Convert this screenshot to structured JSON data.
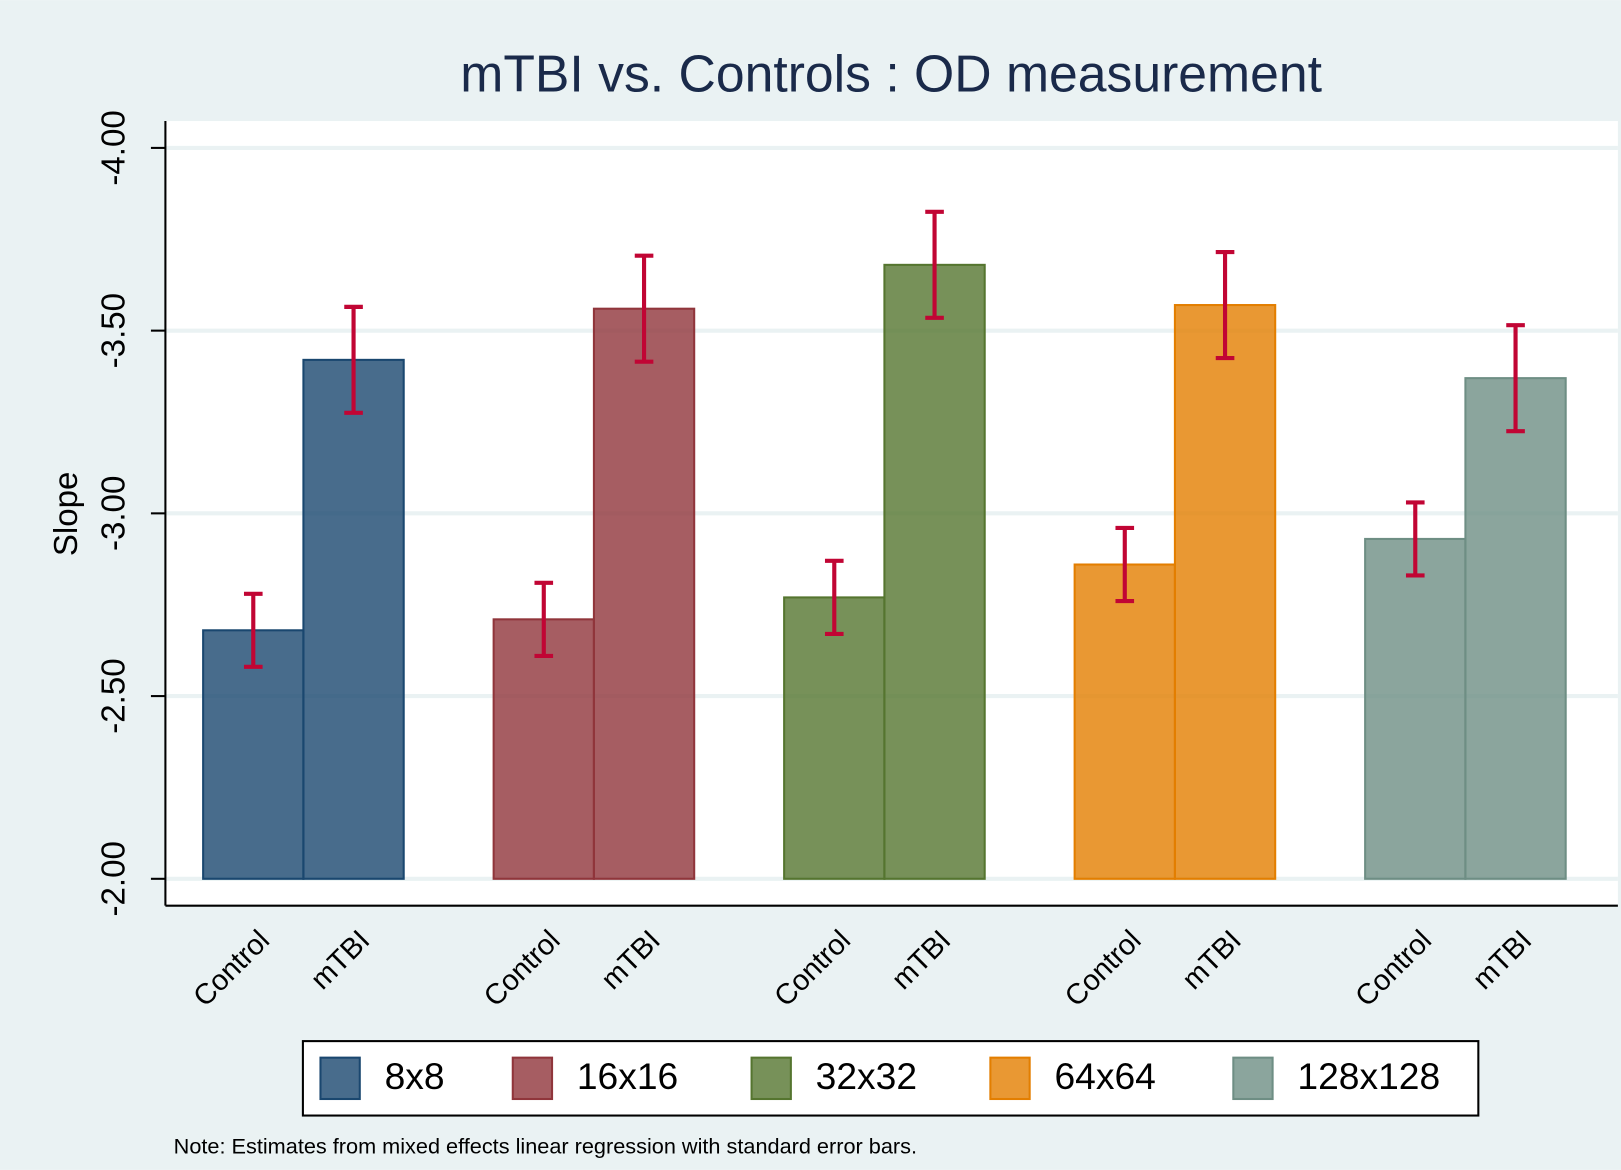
{
  "chart_data": {
    "type": "bar",
    "title": "mTBI vs. Controls : OD measurement",
    "y_label": "Slope",
    "note": "Note: Estimates from mixed effects linear regression with standard error bars.",
    "categories": [
      "Control",
      "mTBI"
    ],
    "series": [
      {
        "name": "8x8",
        "color": "#1a476f",
        "values": [
          -2.68,
          -3.42
        ],
        "errors": [
          0.1,
          0.145
        ]
      },
      {
        "name": "16x16",
        "color": "#90353b",
        "values": [
          -2.71,
          -3.56
        ],
        "errors": [
          0.1,
          0.145
        ]
      },
      {
        "name": "32x32",
        "color": "#55752f",
        "values": [
          -2.77,
          -3.68
        ],
        "errors": [
          0.1,
          0.145
        ]
      },
      {
        "name": "64x64",
        "color": "#e37e00",
        "values": [
          -2.86,
          -3.57
        ],
        "errors": [
          0.1,
          0.145
        ]
      },
      {
        "name": "128x128",
        "color": "#6e8e84",
        "values": [
          -2.93,
          -3.37
        ],
        "errors": [
          0.1,
          0.145
        ]
      }
    ],
    "error_color": "#c10534",
    "ylim": [
      -2,
      -4
    ],
    "yticks": [
      {
        "value": -2,
        "label": "-2.00"
      },
      {
        "value": -2.5,
        "label": "-2.50"
      },
      {
        "value": -3,
        "label": "-3.00"
      },
      {
        "value": -3.5,
        "label": "-3.50"
      },
      {
        "value": -4,
        "label": "-4.00"
      }
    ],
    "grid": true,
    "legend": "bottom"
  }
}
